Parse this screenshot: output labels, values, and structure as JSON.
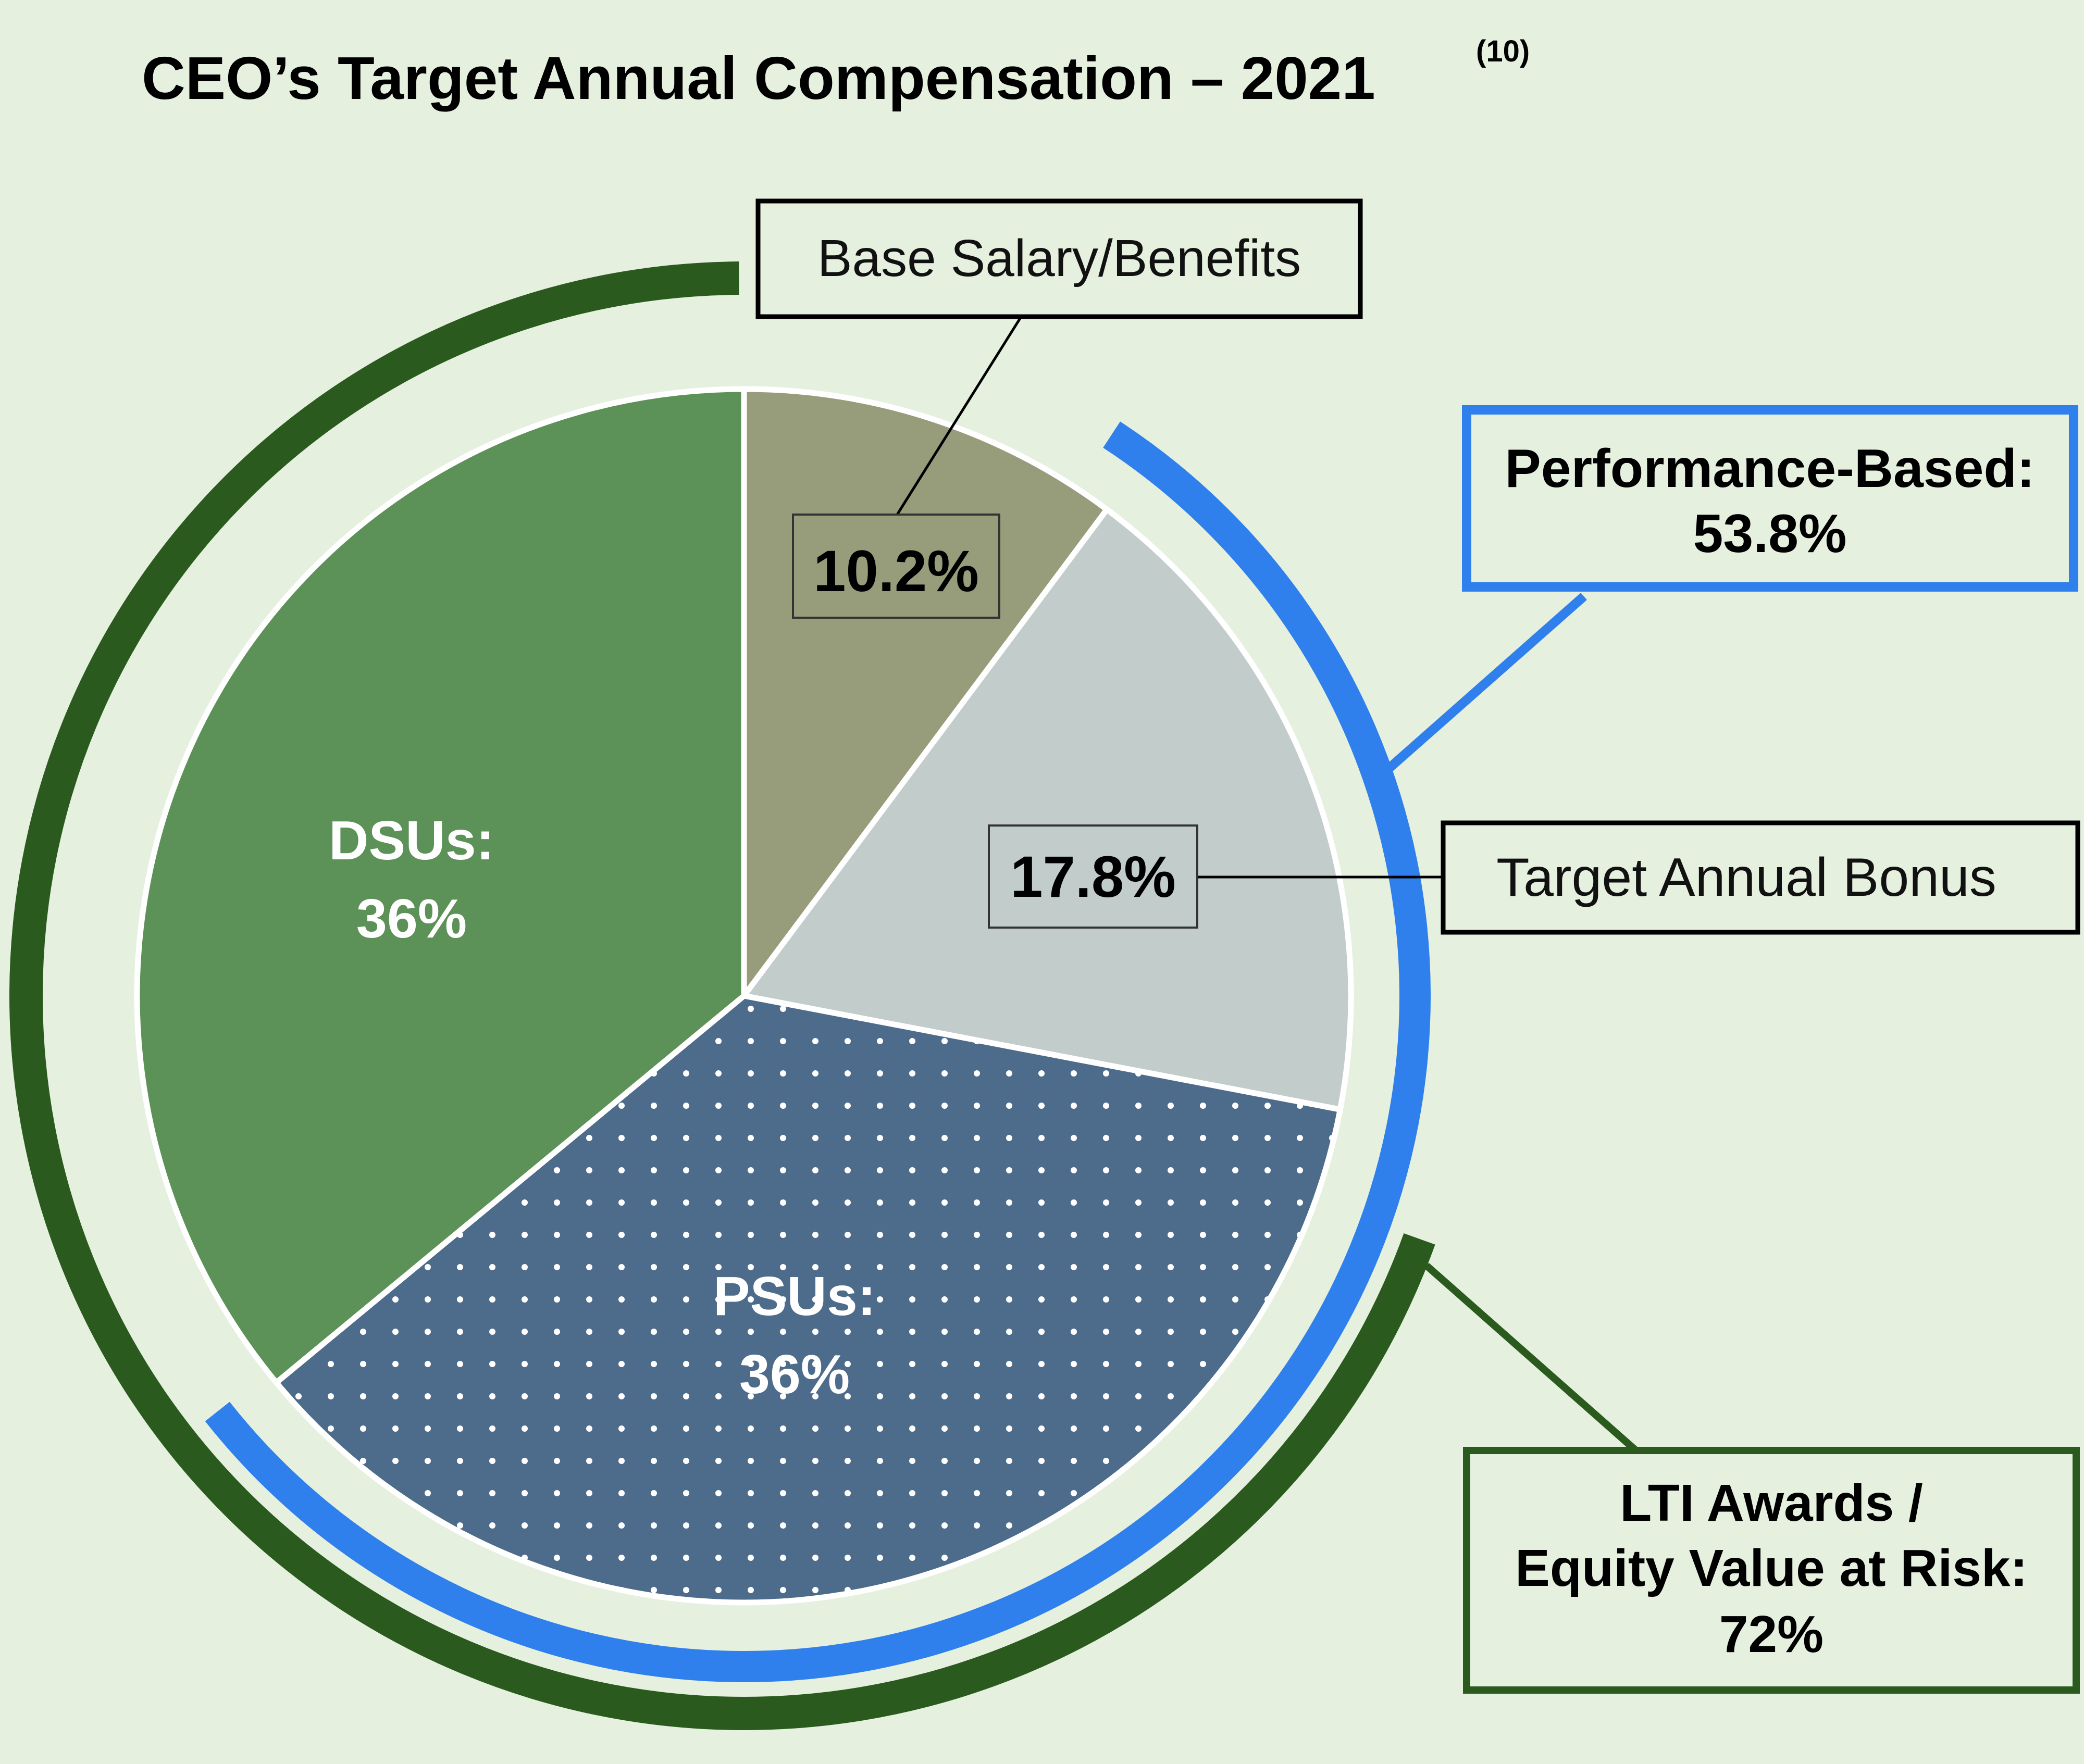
{
  "chart_data": {
    "type": "pie",
    "title": "CEO’s Target Annual Compensation – 2021",
    "title_note": "(10)",
    "slices": [
      {
        "name": "Base Salary/Benefits",
        "value": 10.2,
        "label": "10.2%",
        "color": "#979c7a",
        "pattern": "none"
      },
      {
        "name": "Target Annual Bonus",
        "value": 17.8,
        "label": "17.8%",
        "color": "#c1cccb",
        "pattern": "none"
      },
      {
        "name": "PSUs:",
        "value": 36,
        "label": "36%",
        "color": "#4d6b8a",
        "pattern": "dots"
      },
      {
        "name": "DSUs:",
        "value": 36,
        "label": "36%",
        "color": "#5c9157",
        "pattern": "none"
      }
    ],
    "groups": [
      {
        "text": "Performance-Based:",
        "value_text": "53.8%",
        "covers": [
          "Target Annual Bonus",
          "PSUs:"
        ],
        "color": "#2f80ed"
      },
      {
        "lines": [
          "LTI Awards /",
          "Equity Value at Risk:"
        ],
        "value_text": "72%",
        "covers": [
          "PSUs:",
          "DSUs:"
        ],
        "color": "#2a5a1e"
      }
    ],
    "legend": "none",
    "grid": false
  }
}
